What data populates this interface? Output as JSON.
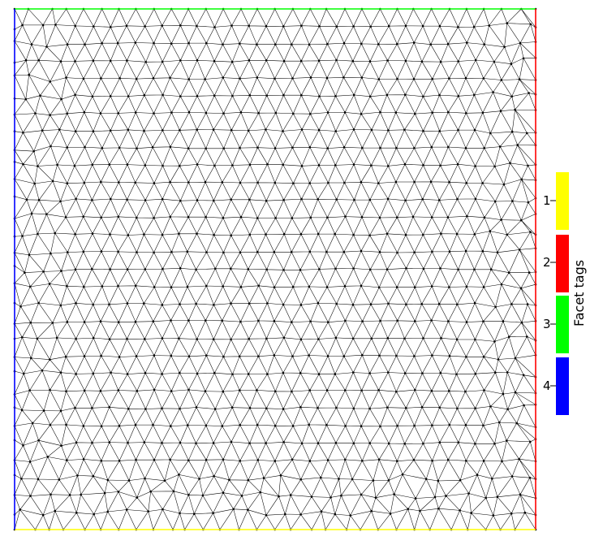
{
  "mesh": {
    "edge_color": "#000000",
    "background": "#ffffff",
    "boundary_tags": {
      "top": 3,
      "right": 2,
      "bottom": 1,
      "left": 4
    }
  },
  "legend": {
    "title": "Facet tags",
    "entries": [
      {
        "tag": "1",
        "color": "#ffff00"
      },
      {
        "tag": "2",
        "color": "#ff0000"
      },
      {
        "tag": "3",
        "color": "#00ff00"
      },
      {
        "tag": "4",
        "color": "#0000ff"
      }
    ]
  }
}
